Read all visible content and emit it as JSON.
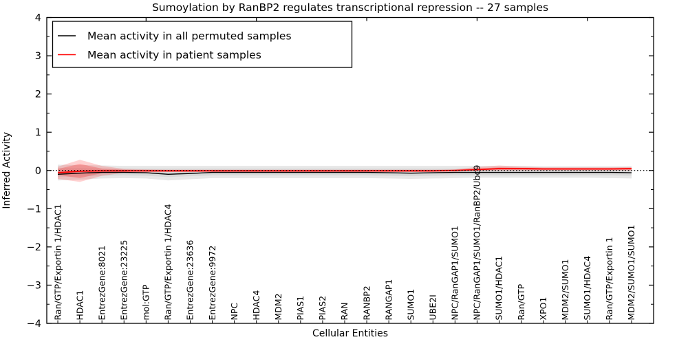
{
  "figure": {
    "title": "Sumoylation by RanBP2 regulates transcriptional repression -- 27 samples",
    "xlabel": "Cellular Entities",
    "ylabel": "Inferred Activity"
  },
  "chart_data": {
    "type": "line",
    "title": "Sumoylation by RanBP2 regulates transcriptional repression -- 27 samples",
    "xlabel": "Cellular Entities",
    "ylabel": "Inferred Activity",
    "ylim": [
      -4,
      4
    ],
    "xlim": [
      0.5,
      28
    ],
    "grid": false,
    "y_major_ticks": [
      -4,
      -3,
      -2,
      -1,
      0,
      1,
      2,
      3,
      4
    ],
    "y_minor_step": 0.5,
    "x_top_ticks": [
      5,
      10,
      15,
      20,
      25
    ],
    "categories": [
      "Ran/GTP/Exportin 1/HDAC1",
      "HDAC1",
      "EntrezGene:8021",
      "EntrezGene:23225",
      "mol:GTP",
      "Ran/GTP/Exportin 1/HDAC4",
      "EntrezGene:23636",
      "EntrezGene:9972",
      "NPC",
      "HDAC4",
      "MDM2",
      "PIAS1",
      "PIAS2",
      "RAN",
      "RANBP2",
      "RANGAP1",
      "SUMO1",
      "UBE2I",
      "NPC/RanGAP1/SUMO1",
      "NPC/RanGAP1/SUMO1/RanBP2/Ubc9",
      "SUMO1/HDAC1",
      "Ran/GTP",
      "XPO1",
      "MDM2/SUMO1",
      "SUMO1/HDAC4",
      "Ran/GTP/Exportin 1",
      "MDM2/SUMO1/SUMO1"
    ],
    "series": [
      {
        "name": "Mean activity in all permuted samples",
        "color": "#000000",
        "width": 1.4,
        "values": [
          -0.1,
          -0.07,
          -0.05,
          -0.05,
          -0.06,
          -0.1,
          -0.08,
          -0.05,
          -0.05,
          -0.05,
          -0.05,
          -0.05,
          -0.05,
          -0.05,
          -0.05,
          -0.06,
          -0.07,
          -0.06,
          -0.05,
          -0.05,
          -0.05,
          -0.05,
          -0.05,
          -0.05,
          -0.05,
          -0.05,
          -0.06
        ]
      },
      {
        "name": "Mean activity in patient samples",
        "color": "#ff0000",
        "width": 1.8,
        "values": [
          -0.06,
          -0.02,
          -0.01,
          -0.01,
          -0.01,
          -0.01,
          -0.01,
          -0.01,
          -0.01,
          -0.01,
          -0.01,
          -0.01,
          -0.01,
          -0.01,
          -0.01,
          -0.01,
          -0.01,
          -0.01,
          0.0,
          0.02,
          0.05,
          0.05,
          0.04,
          0.04,
          0.04,
          0.04,
          0.05
        ]
      }
    ],
    "bands": [
      {
        "name": "permuted-spread-outer",
        "color": "#e7e7e7",
        "opacity": 1,
        "upper": [
          0.15,
          0.14,
          0.13,
          0.12,
          0.12,
          0.12,
          0.12,
          0.12,
          0.12,
          0.12,
          0.12,
          0.12,
          0.12,
          0.12,
          0.12,
          0.12,
          0.12,
          0.12,
          0.12,
          0.12,
          0.12,
          0.12,
          0.11,
          0.11,
          0.11,
          0.11,
          0.11
        ],
        "lower": [
          -0.26,
          -0.24,
          -0.21,
          -0.2,
          -0.21,
          -0.26,
          -0.23,
          -0.2,
          -0.2,
          -0.2,
          -0.2,
          -0.2,
          -0.2,
          -0.2,
          -0.2,
          -0.21,
          -0.22,
          -0.21,
          -0.2,
          -0.19,
          -0.19,
          -0.19,
          -0.19,
          -0.19,
          -0.19,
          -0.2,
          -0.21
        ]
      },
      {
        "name": "permuted-spread-inner",
        "color": "#d9d9d9",
        "opacity": 1,
        "upper": [
          0.06,
          0.06,
          0.05,
          0.05,
          0.05,
          0.05,
          0.05,
          0.05,
          0.05,
          0.05,
          0.05,
          0.05,
          0.05,
          0.05,
          0.05,
          0.05,
          0.05,
          0.05,
          0.05,
          0.05,
          0.05,
          0.05,
          0.05,
          0.05,
          0.05,
          0.05,
          0.05
        ],
        "lower": [
          -0.17,
          -0.16,
          -0.14,
          -0.13,
          -0.14,
          -0.17,
          -0.15,
          -0.13,
          -0.13,
          -0.13,
          -0.13,
          -0.13,
          -0.13,
          -0.13,
          -0.13,
          -0.14,
          -0.15,
          -0.14,
          -0.13,
          -0.13,
          -0.13,
          -0.13,
          -0.13,
          -0.13,
          -0.13,
          -0.13,
          -0.14
        ]
      },
      {
        "name": "patient-spread-outer",
        "color": "#ff0000",
        "opacity": 0.18,
        "upper": [
          0.1,
          0.28,
          0.12,
          0.04,
          0.03,
          0.02,
          0.02,
          0.02,
          0.02,
          0.02,
          0.02,
          0.02,
          0.02,
          0.02,
          0.02,
          0.02,
          0.02,
          0.02,
          0.03,
          0.09,
          0.13,
          0.1,
          0.08,
          0.08,
          0.08,
          0.08,
          0.09
        ],
        "lower": [
          -0.22,
          -0.3,
          -0.14,
          -0.06,
          -0.05,
          -0.04,
          -0.04,
          -0.04,
          -0.04,
          -0.04,
          -0.04,
          -0.04,
          -0.04,
          -0.04,
          -0.04,
          -0.04,
          -0.04,
          -0.04,
          -0.03,
          -0.01,
          0.0,
          0.0,
          0.0,
          0.0,
          0.0,
          0.0,
          0.0
        ]
      },
      {
        "name": "patient-spread-inner",
        "color": "#ff0000",
        "opacity": 0.22,
        "upper": [
          0.04,
          0.17,
          0.05,
          0.02,
          0.01,
          0.01,
          0.01,
          0.01,
          0.01,
          0.01,
          0.01,
          0.01,
          0.01,
          0.01,
          0.01,
          0.01,
          0.01,
          0.01,
          0.02,
          0.05,
          0.08,
          0.07,
          0.06,
          0.06,
          0.06,
          0.06,
          0.06
        ],
        "lower": [
          -0.12,
          -0.2,
          -0.07,
          -0.04,
          -0.03,
          -0.03,
          -0.03,
          -0.03,
          -0.03,
          -0.03,
          -0.03,
          -0.03,
          -0.03,
          -0.03,
          -0.03,
          -0.03,
          -0.03,
          -0.03,
          -0.02,
          0.0,
          0.01,
          0.01,
          0.01,
          0.01,
          0.01,
          0.01,
          0.01
        ]
      }
    ],
    "zero_line": {
      "value": 0,
      "style": "dotted",
      "color": "#000000"
    },
    "legend": {
      "position": "upper-left",
      "entries": [
        {
          "label": "Mean activity in all permuted samples",
          "color": "#000000"
        },
        {
          "label": "Mean activity in patient samples",
          "color": "#ff0000"
        }
      ]
    }
  }
}
